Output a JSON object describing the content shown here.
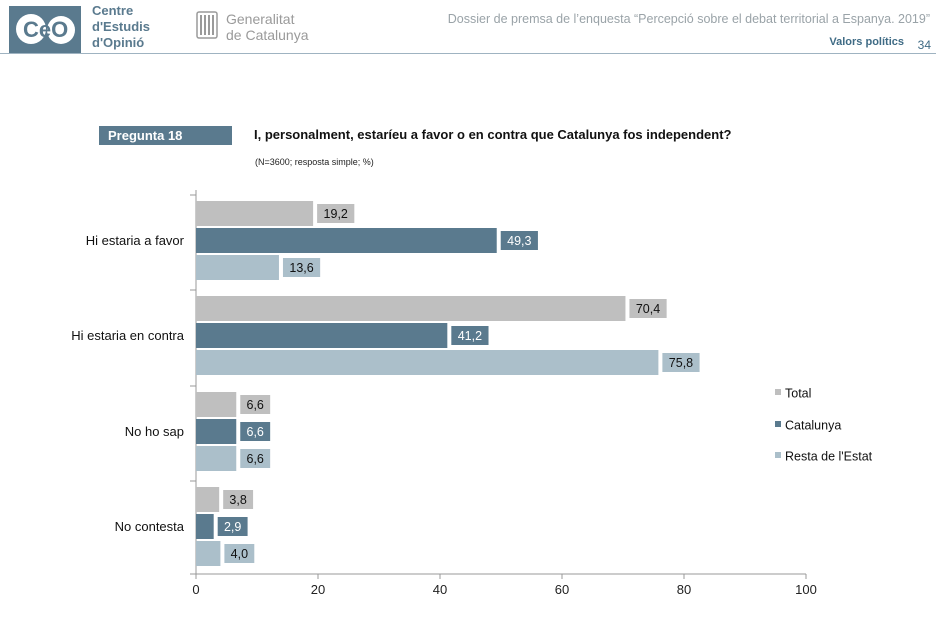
{
  "header": {
    "org_logo_text": "CeO",
    "org_name_lines": [
      "Centre",
      "d'Estudis",
      "d'Opinió"
    ],
    "gov_name_lines": [
      "Generalitat",
      "de Catalunya"
    ],
    "dossier_title": "Dossier de premsa de l’enquesta “Percepció sobre el debat territorial a Espanya. 2019”",
    "section": "Valors polítics",
    "page": "34"
  },
  "question": {
    "tag": "Pregunta 18",
    "text": "I, personalment, estaríeu a favor o en contra que Catalunya fos independent?",
    "note": "(N=3600; resposta simple; %)"
  },
  "colors": {
    "Total": "#bfbfbf",
    "Catalunya": "#5a7a8e",
    "Resta de l'Estat": "#abbfca",
    "accent": "#5a7a8e"
  },
  "chart_data": {
    "type": "bar",
    "orientation": "horizontal",
    "categories": [
      "Hi estaria a favor",
      "Hi estaria en contra",
      "No ho sap",
      "No contesta"
    ],
    "series": [
      {
        "name": "Total",
        "values": [
          19.2,
          70.4,
          6.6,
          3.8
        ],
        "labels": [
          "19,2",
          "70,4",
          "6,6",
          "3,8"
        ]
      },
      {
        "name": "Catalunya",
        "values": [
          49.3,
          41.2,
          6.6,
          2.9
        ],
        "labels": [
          "49,3",
          "41,2",
          "6,6",
          "2,9"
        ]
      },
      {
        "name": "Resta de l'Estat",
        "values": [
          13.6,
          75.8,
          6.6,
          4.0
        ],
        "labels": [
          "13,6",
          "75,8",
          "6,6",
          "4,0"
        ]
      }
    ],
    "xlim": [
      0,
      100
    ],
    "xticks": [
      0,
      20,
      40,
      60,
      80,
      100
    ],
    "legend": "right",
    "grid": false
  }
}
